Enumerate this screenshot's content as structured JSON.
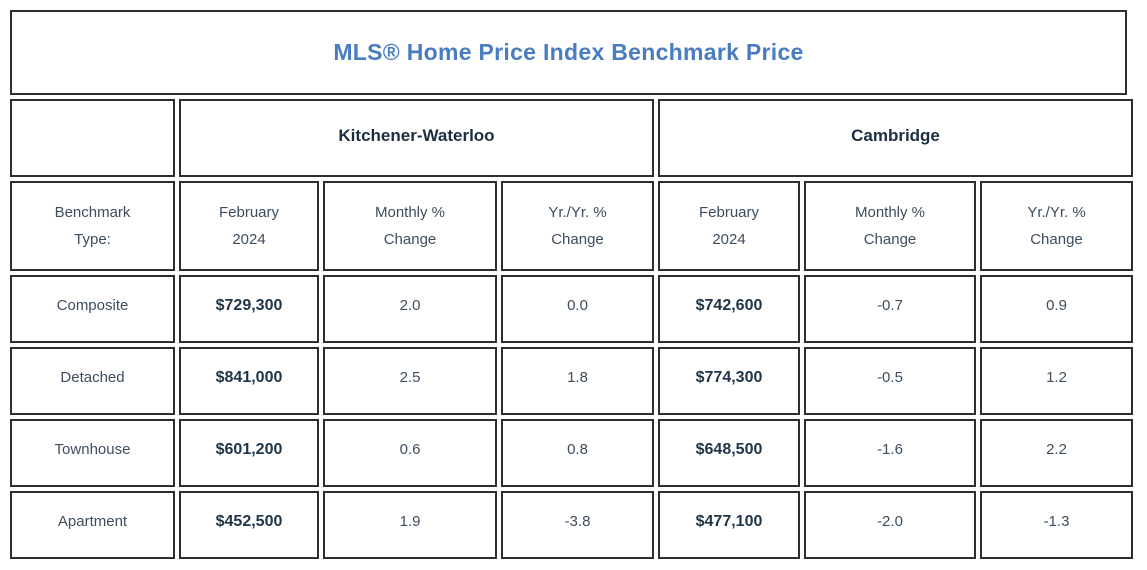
{
  "title": "MLS® Home Price Index Benchmark Price",
  "region_headers": {
    "kw": "Kitchener-Waterloo",
    "cambridge": "Cambridge"
  },
  "column_headers": {
    "benchmark_line1": "Benchmark",
    "benchmark_line2": "Type:",
    "month_line1": "February",
    "month_line2": "2024",
    "monthly_line1": "Monthly %",
    "monthly_line2": "Change",
    "yoy_line1": "Yr./Yr. %",
    "yoy_line2": "Change"
  },
  "rows": [
    {
      "type": "Composite",
      "kw": {
        "price": "$729,300",
        "monthly": "2.0",
        "yoy": "0.0"
      },
      "cambridge": {
        "price": "$742,600",
        "monthly": "-0.7",
        "yoy": "0.9"
      }
    },
    {
      "type": "Detached",
      "kw": {
        "price": "$841,000",
        "monthly": "2.5",
        "yoy": "1.8"
      },
      "cambridge": {
        "price": "$774,300",
        "monthly": "-0.5",
        "yoy": "1.2"
      }
    },
    {
      "type": "Townhouse",
      "kw": {
        "price": "$601,200",
        "monthly": "0.6",
        "yoy": "0.8"
      },
      "cambridge": {
        "price": "$648,500",
        "monthly": "-1.6",
        "yoy": "2.2"
      }
    },
    {
      "type": "Apartment",
      "kw": {
        "price": "$452,500",
        "monthly": "1.9",
        "yoy": "-3.8"
      },
      "cambridge": {
        "price": "$477,100",
        "monthly": "-2.0",
        "yoy": "-1.3"
      }
    }
  ],
  "colors": {
    "title_blue": "#4a7cc2",
    "heading_navy": "#1c2e42",
    "body_slate": "#3d4d5f",
    "border_dark": "#2e2e2e",
    "background": "#ffffff"
  },
  "chart_data": {
    "type": "table",
    "title": "MLS® Home Price Index Benchmark Price",
    "column_groups": [
      "",
      "Kitchener-Waterloo",
      "Kitchener-Waterloo",
      "Kitchener-Waterloo",
      "Cambridge",
      "Cambridge",
      "Cambridge"
    ],
    "columns": [
      "Benchmark Type:",
      "February 2024",
      "Monthly % Change",
      "Yr./Yr. % Change",
      "February 2024",
      "Monthly % Change",
      "Yr./Yr. % Change"
    ],
    "rows": [
      [
        "Composite",
        "$729,300",
        2.0,
        0.0,
        "$742,600",
        -0.7,
        0.9
      ],
      [
        "Detached",
        "$841,000",
        2.5,
        1.8,
        "$774,300",
        -0.5,
        1.2
      ],
      [
        "Townhouse",
        "$601,200",
        0.6,
        0.8,
        "$648,500",
        -1.6,
        2.2
      ],
      [
        "Apartment",
        "$452,500",
        1.9,
        -3.8,
        "$477,100",
        -2.0,
        -1.3
      ]
    ]
  }
}
